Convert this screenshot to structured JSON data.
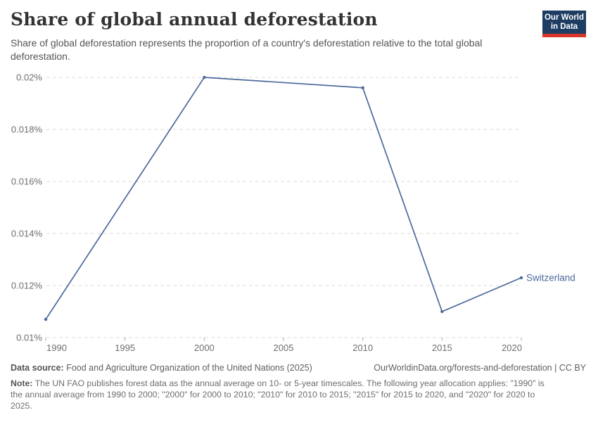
{
  "header": {
    "title": "Share of global annual deforestation",
    "subtitle": "Share of global deforestation represents the proportion of a country's deforestation relative to the total global\ndeforestation.",
    "logo": {
      "line1": "Our World",
      "line2": "in Data",
      "bg_color": "#1d3d63",
      "accent_color": "#d8352b"
    }
  },
  "chart_data": {
    "type": "line",
    "title": "Share of global annual deforestation",
    "xlabel": "",
    "ylabel": "",
    "x": [
      1990,
      2000,
      2010,
      2015,
      2020
    ],
    "series": [
      {
        "name": "Switzerland",
        "values_percent": [
          0.0107,
          0.02,
          0.0196,
          0.011,
          0.0123
        ]
      }
    ],
    "xlim": [
      1990,
      2020
    ],
    "ylim": [
      0.01,
      0.02
    ],
    "x_ticks": [
      1990,
      1995,
      2000,
      2005,
      2010,
      2015,
      2020
    ],
    "y_ticks": [
      {
        "value": 0.01,
        "label": "0.01%"
      },
      {
        "value": 0.012,
        "label": "0.012%"
      },
      {
        "value": 0.014,
        "label": "0.014%"
      },
      {
        "value": 0.016,
        "label": "0.016%"
      },
      {
        "value": 0.018,
        "label": "0.018%"
      },
      {
        "value": 0.02,
        "label": "0.02%"
      }
    ],
    "grid": true,
    "legend_position": "end-of-line-label",
    "line_color": "#4C6A9C",
    "grid_color": "#dddddd",
    "tick_color": "#a8a8a8",
    "axis_text_color": "#6e6e6e"
  },
  "footer": {
    "data_source_label": "Data source:",
    "data_source_text": "Food and Agriculture Organization of the United Nations (2025)",
    "attribution": "OurWorldinData.org/forests-and-deforestation | CC BY",
    "note_label": "Note:",
    "note_text": "The UN FAO publishes forest data as the annual average on 10- or 5-year timescales. The following year allocation applies: \"1990\" is\nthe annual average from 1990 to 2000; \"2000\" for 2000 to 2010; \"2010\" for 2010 to 2015; \"2015\" for 2015 to 2020, and \"2020\" for 2020 to\n2025."
  }
}
